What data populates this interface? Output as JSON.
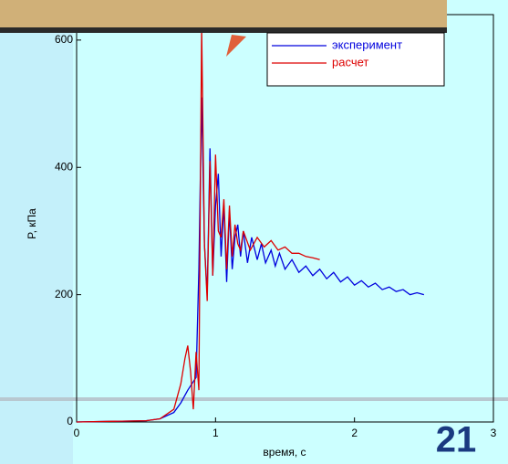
{
  "chart_data": {
    "type": "line",
    "x_label": "время, с",
    "y_label": "P, кПа",
    "slide_number": "21",
    "xlim": [
      0,
      3
    ],
    "ylim": [
      0,
      640
    ],
    "xticks": [
      0,
      1,
      2,
      3
    ],
    "yticks": [
      0,
      200,
      400,
      600
    ],
    "series": [
      {
        "name": "эксперимент",
        "color": "#0000dd",
        "x": [
          0,
          0.5,
          0.6,
          0.7,
          0.75,
          0.8,
          0.83,
          0.86,
          0.88,
          0.9,
          0.92,
          0.94,
          0.96,
          0.98,
          1.0,
          1.02,
          1.04,
          1.06,
          1.08,
          1.1,
          1.12,
          1.14,
          1.16,
          1.18,
          1.2,
          1.23,
          1.26,
          1.3,
          1.33,
          1.36,
          1.4,
          1.43,
          1.46,
          1.5,
          1.55,
          1.6,
          1.65,
          1.7,
          1.75,
          1.8,
          1.85,
          1.9,
          1.95,
          2.0,
          2.05,
          2.1,
          2.15,
          2.2,
          2.25,
          2.3,
          2.35,
          2.4,
          2.45,
          2.5
        ],
        "values": [
          0,
          2,
          5,
          15,
          30,
          50,
          60,
          70,
          240,
          510,
          280,
          200,
          430,
          230,
          340,
          390,
          260,
          340,
          220,
          330,
          240,
          290,
          310,
          260,
          300,
          250,
          290,
          255,
          280,
          250,
          270,
          245,
          265,
          240,
          255,
          235,
          245,
          230,
          240,
          225,
          235,
          220,
          228,
          215,
          222,
          212,
          218,
          208,
          212,
          205,
          208,
          200,
          203,
          200
        ]
      },
      {
        "name": "расчет",
        "color": "#dd0000",
        "x": [
          0,
          0.5,
          0.6,
          0.7,
          0.75,
          0.78,
          0.8,
          0.82,
          0.84,
          0.86,
          0.88,
          0.9,
          0.92,
          0.94,
          0.96,
          0.98,
          1.0,
          1.02,
          1.04,
          1.06,
          1.08,
          1.1,
          1.12,
          1.14,
          1.16,
          1.18,
          1.2,
          1.25,
          1.3,
          1.35,
          1.4,
          1.45,
          1.5,
          1.55,
          1.6,
          1.65,
          1.7,
          1.75
        ],
        "values": [
          0,
          2,
          5,
          20,
          60,
          100,
          120,
          80,
          20,
          110,
          50,
          620,
          280,
          190,
          410,
          230,
          420,
          300,
          290,
          350,
          240,
          340,
          260,
          310,
          280,
          270,
          300,
          270,
          290,
          275,
          285,
          270,
          275,
          265,
          265,
          260,
          258,
          255
        ]
      }
    ]
  }
}
